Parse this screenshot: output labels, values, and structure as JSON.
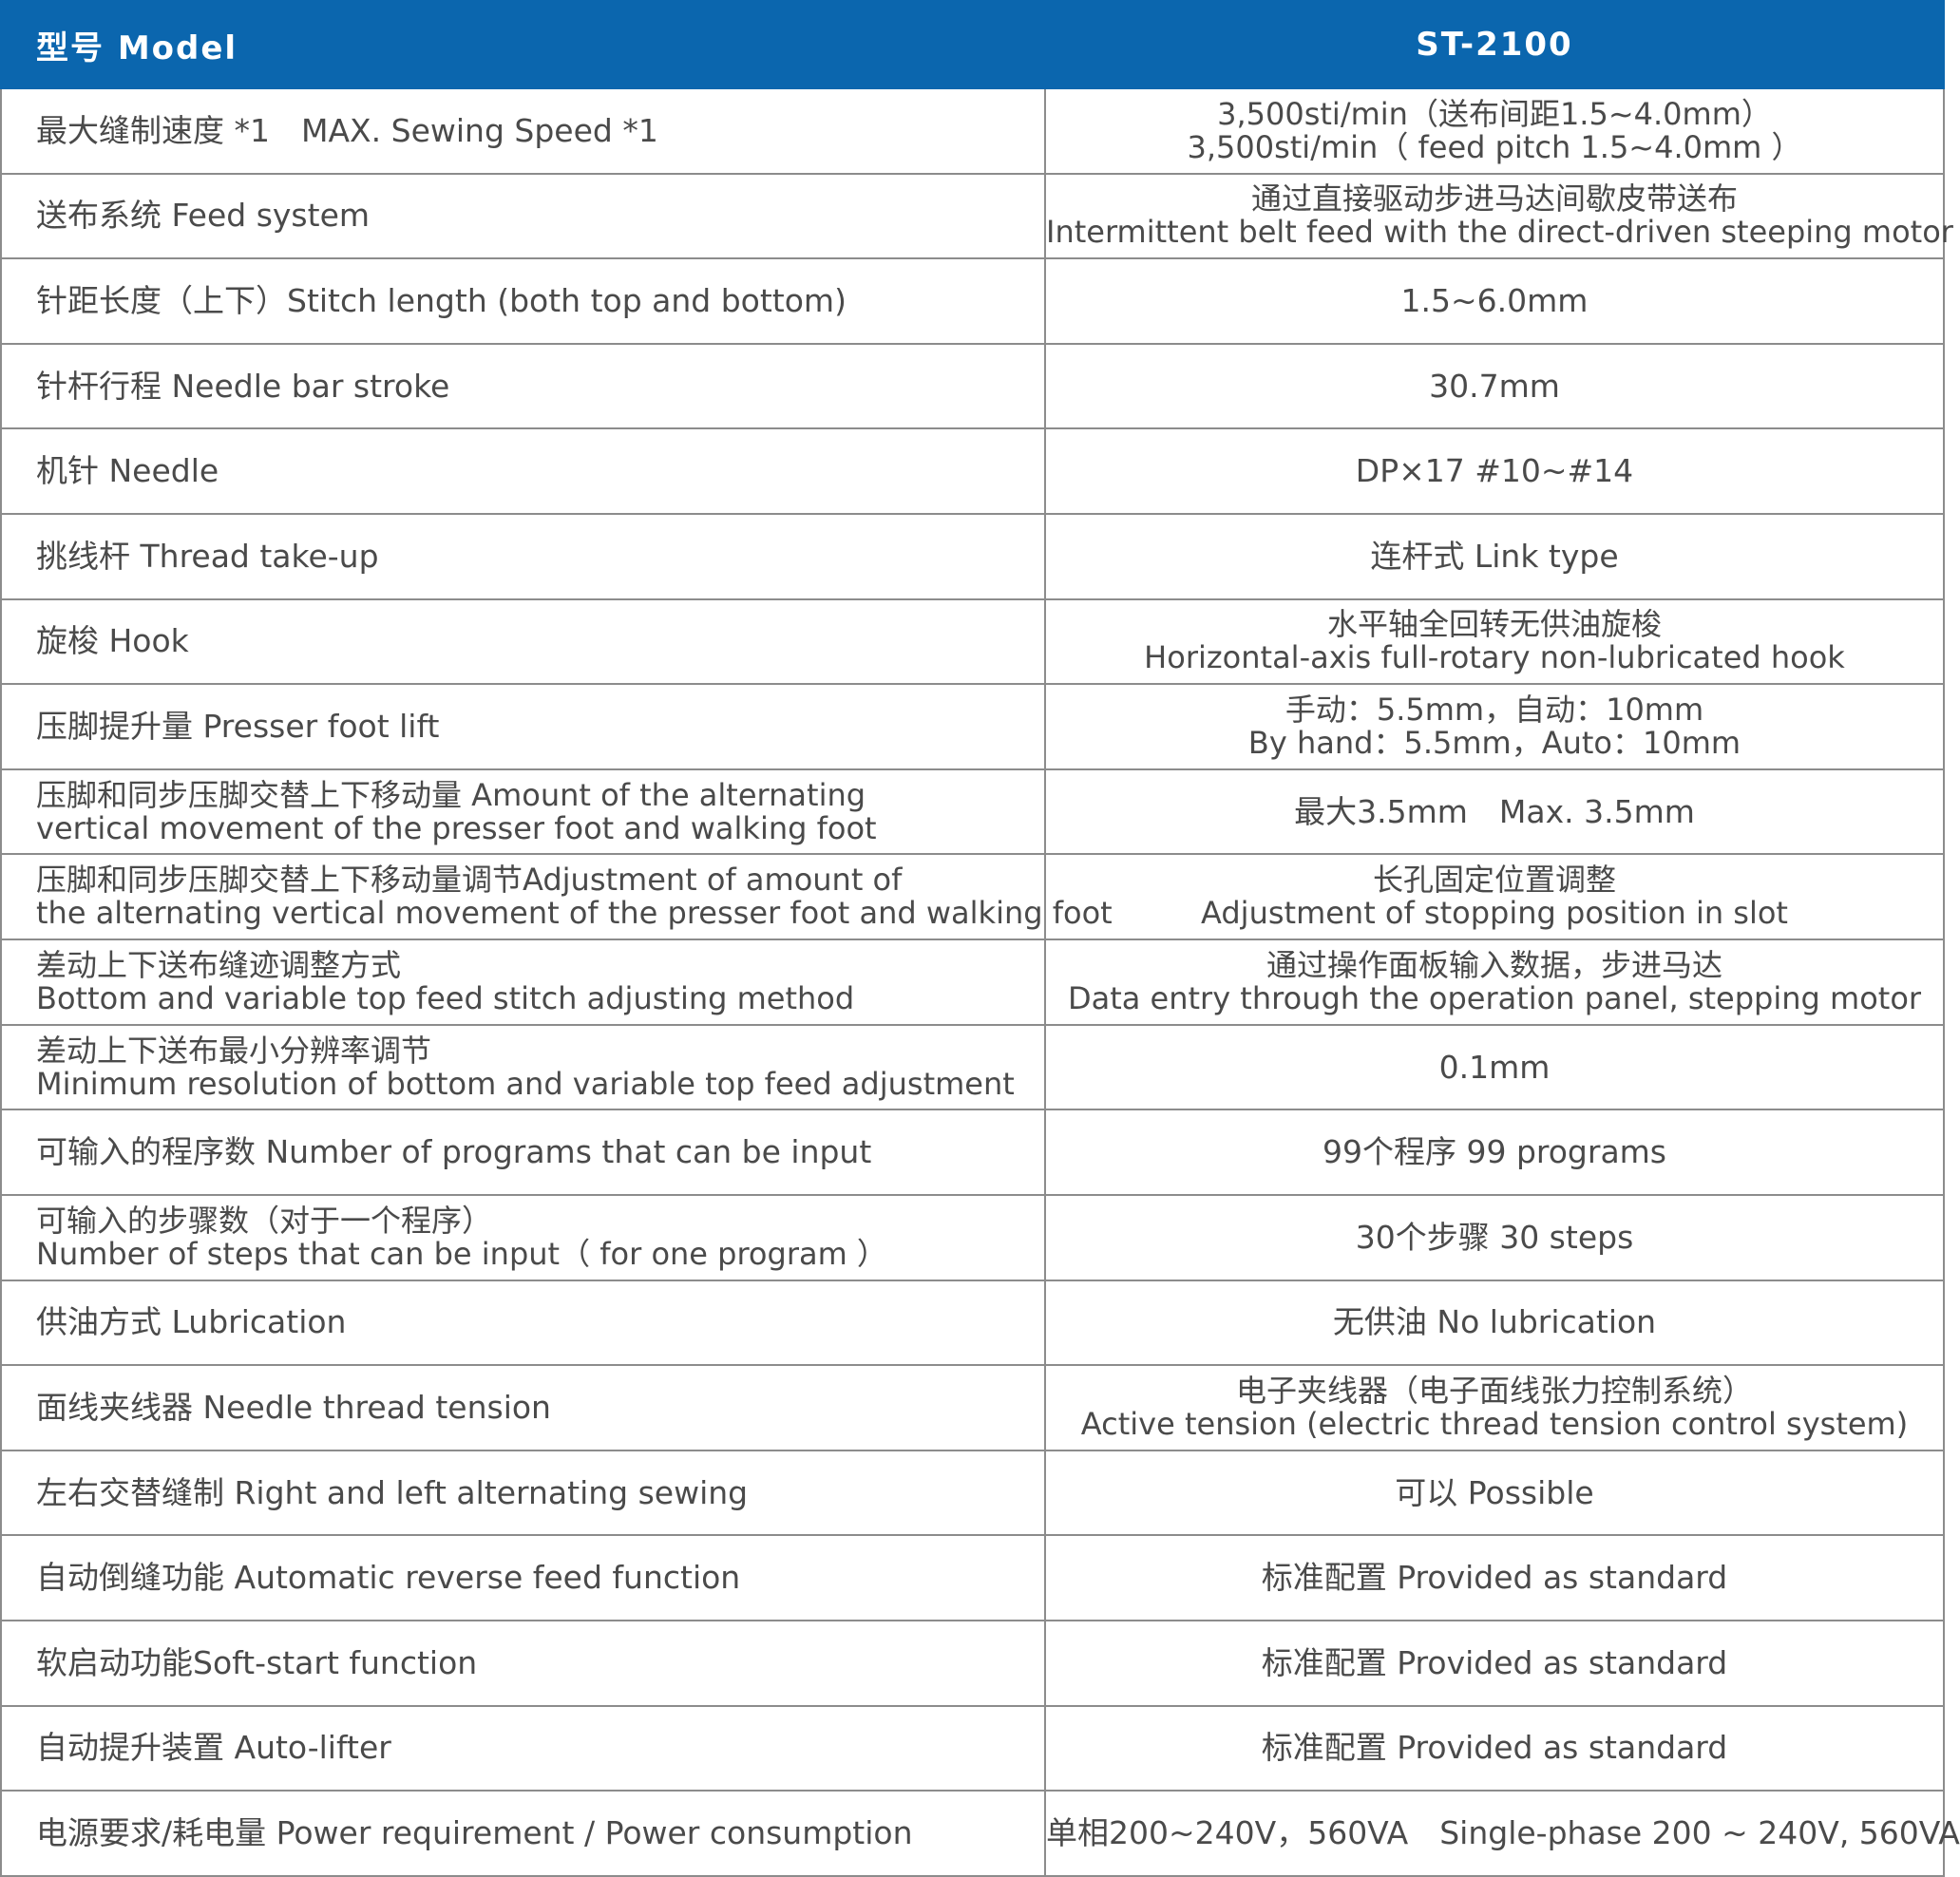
{
  "header": {
    "param_label": "型号 Model",
    "model": "ST-2100"
  },
  "rows": [
    {
      "param": [
        "最大缝制速度 *1　MAX. Sewing Speed *1"
      ],
      "value": [
        "3,500sti/min（送布间距1.5~4.0mm）",
        "3,500sti/min（ feed pitch 1.5~4.0mm ）"
      ]
    },
    {
      "param": [
        "送布系统 Feed system"
      ],
      "value": [
        "通过直接驱动步进马达间歇皮带送布",
        "Intermittent belt feed with the direct-driven steeping motor"
      ]
    },
    {
      "param": [
        "针距长度（上下）Stitch length (both top and bottom)"
      ],
      "value": [
        "1.5~6.0mm"
      ]
    },
    {
      "param": [
        "针杆行程  Needle bar stroke"
      ],
      "value": [
        "30.7mm"
      ]
    },
    {
      "param": [
        "机针 Needle"
      ],
      "value": [
        "DP×17 #10~#14"
      ]
    },
    {
      "param": [
        "挑线杆 Thread take-up"
      ],
      "value": [
        "连杆式 Link type"
      ]
    },
    {
      "param": [
        "旋梭 Hook"
      ],
      "value": [
        "水平轴全回转无供油旋梭",
        "Horizontal-axis full-rotary non-lubricated hook"
      ]
    },
    {
      "param": [
        "压脚提升量 Presser foot lift"
      ],
      "value": [
        "手动：5.5mm，自动：10mm",
        "By hand：5.5mm，Auto：10mm"
      ]
    },
    {
      "param": [
        "压脚和同步压脚交替上下移动量  Amount of the alternating",
        "vertical movement of the presser foot and walking foot"
      ],
      "value": [
        "最大3.5mm　Max. 3.5mm"
      ]
    },
    {
      "param": [
        "压脚和同步压脚交替上下移动量调节Adjustment of amount of",
        "the alternating vertical movement of the presser foot and walking foot"
      ],
      "value": [
        "长孔固定位置调整",
        "Adjustment of stopping position in slot"
      ]
    },
    {
      "param": [
        "差动上下送布缝迹调整方式",
        "Bottom and variable top feed stitch adjusting method"
      ],
      "value": [
        "通过操作面板输入数据，步进马达",
        "Data entry through the operation panel, stepping motor"
      ]
    },
    {
      "param": [
        "差动上下送布最小分辨率调节",
        "Minimum resolution of bottom and variable top feed adjustment"
      ],
      "value": [
        "0.1mm"
      ]
    },
    {
      "param": [
        "可输入的程序数 Number of programs that can be input"
      ],
      "value": [
        "99个程序  99 programs"
      ]
    },
    {
      "param": [
        "可输入的步骤数（对于一个程序）",
        "Number of steps that can be input（ for one program ）"
      ],
      "value": [
        "30个步骤  30 steps"
      ]
    },
    {
      "param": [
        "供油方式 Lubrication"
      ],
      "value": [
        "无供油 No lubrication"
      ]
    },
    {
      "param": [
        "面线夹线器 Needle thread tension"
      ],
      "value": [
        "电子夹线器（电子面线张力控制系统）",
        "Active tension (electric thread tension control system)"
      ]
    },
    {
      "param": [
        "左右交替缝制 Right and left alternating sewing"
      ],
      "value": [
        "可以 Possible"
      ]
    },
    {
      "param": [
        "自动倒缝功能 Automatic reverse feed function"
      ],
      "value": [
        "标准配置 Provided as standard"
      ]
    },
    {
      "param": [
        "软启动功能Soft-start function"
      ],
      "value": [
        "标准配置 Provided as standard"
      ]
    },
    {
      "param": [
        "自动提升装置 Auto-lifter"
      ],
      "value": [
        "标准配置 Provided as standard"
      ]
    },
    {
      "param": [
        "电源要求/耗电量 Power requirement / Power consumption"
      ],
      "value": [
        "单相200~240V，560VA　Single-phase 200 ~ 240V, 560VA"
      ]
    }
  ]
}
